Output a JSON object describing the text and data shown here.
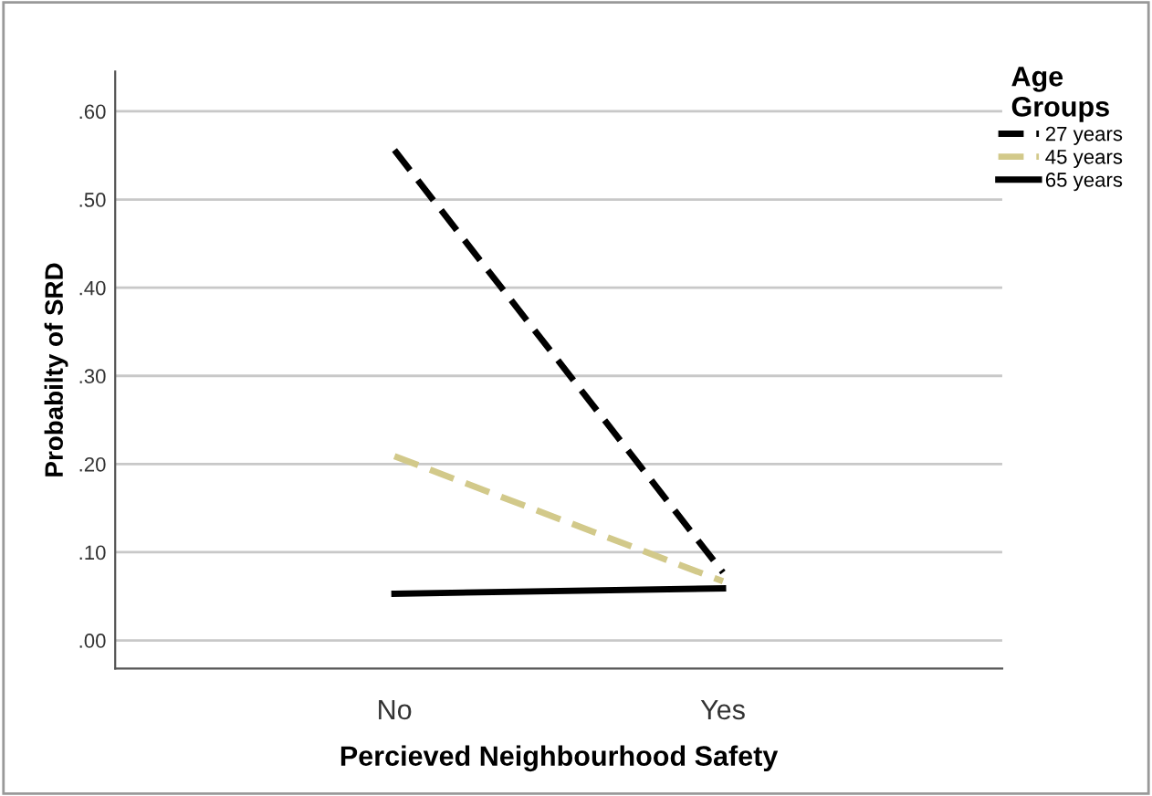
{
  "chart_data": {
    "type": "line",
    "xlabel": "Percieved Neighbourhood Safety",
    "ylabel": "Probabilty of SRD",
    "legend_title": "Age\nGroups",
    "categories": [
      "No",
      "Yes"
    ],
    "series": [
      {
        "name": "27 years",
        "color": "#000000",
        "line_style": "dashed",
        "values": [
          0.556,
          0.077
        ]
      },
      {
        "name": "45 years",
        "color": "#d2c98a",
        "line_style": "dashed",
        "values": [
          0.209,
          0.067
        ]
      },
      {
        "name": "65 years",
        "color": "#000000",
        "line_style": "solid",
        "values": [
          0.053,
          0.059
        ]
      }
    ],
    "ylim": [
      -0.032,
      0.645
    ],
    "yticks": [
      {
        "value": 0,
        "label": ".00"
      },
      {
        "value": 0.1,
        "label": ".10"
      },
      {
        "value": 0.2,
        "label": ".20"
      },
      {
        "value": 0.3,
        "label": ".30"
      },
      {
        "value": 0.4,
        "label": ".40"
      },
      {
        "value": 0.5,
        "label": ".50"
      },
      {
        "value": 0.6,
        "label": ".60"
      }
    ],
    "grid": "y",
    "legend": "top right",
    "marker": "none"
  }
}
